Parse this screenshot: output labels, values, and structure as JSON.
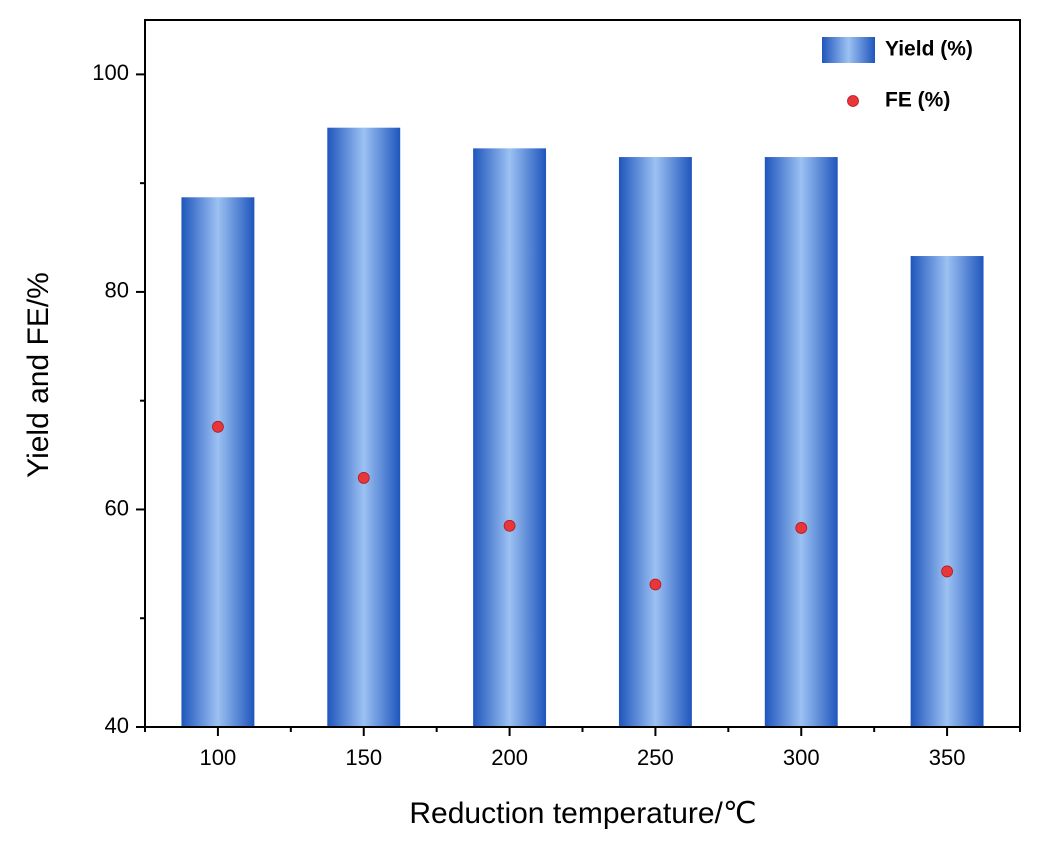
{
  "chart_data": {
    "type": "bar",
    "x_label": "Reduction temperature/℃",
    "y_label": "Yield and FE/%",
    "categories": [
      "100",
      "150",
      "200",
      "250",
      "300",
      "350"
    ],
    "series": [
      {
        "name": "Yield (%)",
        "type": "bar",
        "color": "#1f56bd",
        "highlight": "#9cc1f2",
        "values": [
          88.7,
          95.1,
          93.2,
          92.4,
          92.4,
          83.3
        ]
      },
      {
        "name": "FE (%)",
        "type": "scatter",
        "color": "#e8363a",
        "values": [
          67.6,
          62.9,
          58.5,
          53.1,
          58.3,
          54.3
        ]
      }
    ],
    "ylim": [
      40,
      105
    ],
    "yticks": [
      40,
      60,
      80,
      100
    ],
    "yminorticks": [
      50,
      70,
      90
    ],
    "legend": "top-right"
  }
}
